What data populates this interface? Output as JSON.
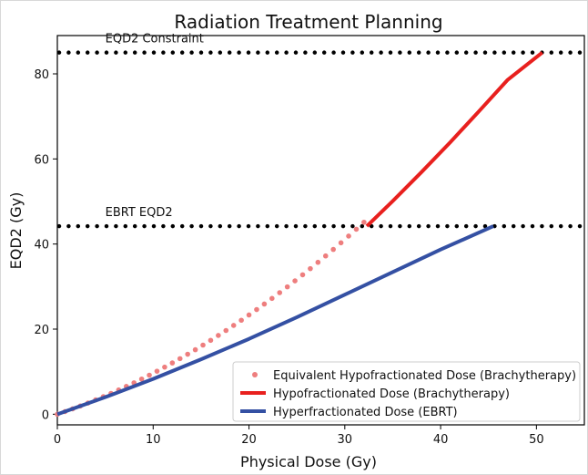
{
  "chart_data": {
    "type": "line",
    "title": "Radiation Treatment Planning",
    "xlabel": "Physical Dose (Gy)",
    "ylabel": "EQD2 (Gy)",
    "xlim": [
      0,
      55
    ],
    "ylim": [
      -2.5,
      89
    ],
    "xticks": [
      0,
      10,
      20,
      30,
      40,
      50
    ],
    "yticks": [
      0,
      20,
      40,
      60,
      80
    ],
    "grid": false,
    "legend_position": "lower-right",
    "hlines": [
      {
        "y": 85,
        "label": "EQD2 Constraint",
        "label_x": 5,
        "color": "#000000",
        "style": "dotted"
      },
      {
        "y": 44.2,
        "label": "EBRT EQD2",
        "label_x": 5,
        "color": "#000000",
        "style": "dotted"
      }
    ],
    "series": [
      {
        "name": "Equivalent Hypofractionated Dose (Brachytherapy)",
        "type": "scatter",
        "color": "#ee7e7e",
        "x": [
          0,
          0.8,
          1.6,
          2.4,
          3.2,
          4.0,
          4.8,
          5.6,
          6.4,
          7.2,
          8.0,
          8.8,
          9.6,
          10.4,
          11.2,
          12.0,
          12.8,
          13.6,
          14.4,
          15.2,
          16.0,
          16.8,
          17.6,
          18.4,
          19.2,
          20.0,
          20.8,
          21.6,
          22.4,
          23.2,
          24.0,
          24.8,
          25.6,
          26.4,
          27.2,
          28.0,
          28.8,
          29.6,
          30.4,
          31.2,
          32.0
        ],
        "y": [
          0,
          0.62,
          1.27,
          1.94,
          2.64,
          3.37,
          4.12,
          4.89,
          5.7,
          6.53,
          7.38,
          8.26,
          9.17,
          10.11,
          11.07,
          12.05,
          13.06,
          14.1,
          15.16,
          16.25,
          17.37,
          18.51,
          19.68,
          20.87,
          22.09,
          23.33,
          24.6,
          25.9,
          27.22,
          28.57,
          29.94,
          31.34,
          32.77,
          34.22,
          35.7,
          37.2,
          38.73,
          40.29,
          41.87,
          43.48,
          45.12
        ]
      },
      {
        "name": "Hypofractionated Dose (Brachytherapy)",
        "type": "line",
        "color": "#e8201e",
        "x": [
          32.3,
          35,
          38,
          41,
          44,
          47,
          50.6
        ],
        "y": [
          44.2,
          50.1,
          56.9,
          63.9,
          71.2,
          78.6,
          85
        ]
      },
      {
        "name": "Hyperfractionated Dose (EBRT)",
        "type": "line",
        "color": "#3450a3",
        "x": [
          0,
          5,
          10,
          15,
          20,
          25,
          30,
          35,
          40,
          45.5
        ],
        "y": [
          0,
          4.0,
          8.3,
          12.9,
          17.7,
          22.8,
          28.1,
          33.4,
          38.7,
          44.2
        ]
      }
    ]
  }
}
